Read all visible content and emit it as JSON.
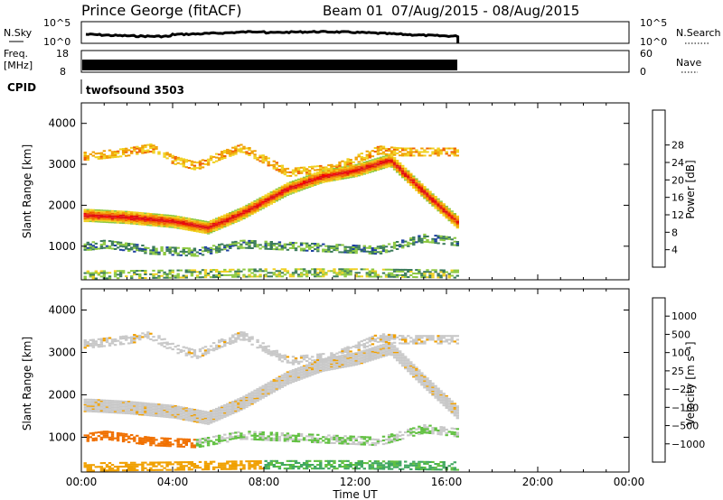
{
  "header": {
    "station": "Prince George (fitACF)",
    "beam": "Beam 01",
    "date_range": "07/Aug/2015 - 08/Aug/2015"
  },
  "top_panels": {
    "nsky": {
      "label": "N.Sky",
      "tick_top": "10^5",
      "tick_bottom": "10^0",
      "right_top": "10^5",
      "right_bottom": "10^0",
      "right_label": "N.Search"
    },
    "freq": {
      "label_top": "Freq.",
      "label_bottom": "[MHz]",
      "tick_top": "18",
      "tick_bottom": "8",
      "right_top": "60",
      "right_bottom": "0",
      "right_label": "Nave"
    },
    "cpid": {
      "label": "CPID",
      "value": "twofsound 3503"
    }
  },
  "colors": {
    "power": [
      "#0000ff",
      "#1d3fa0",
      "#3a7a5a",
      "#8cc840",
      "#f0d020",
      "#f0a000",
      "#f06000",
      "#e01010",
      "#ff0000"
    ],
    "velocity": [
      "#2040a0",
      "#2e7860",
      "#40a860",
      "#60c040",
      "#c8c8c8",
      "#f0a000",
      "#f07000",
      "#e03010",
      "#ff0000"
    ]
  },
  "chart_data": [
    {
      "type": "heatmap",
      "name": "power",
      "ylabel": "Slant Range [km]",
      "xlabel": "Time UT",
      "xlim": [
        "00:00",
        "00:00"
      ],
      "x_ticks": [
        "00:00",
        "04:00",
        "08:00",
        "12:00",
        "16:00",
        "20:00",
        "00:00"
      ],
      "y_ticks": [
        "1000",
        "2000",
        "3000",
        "4000"
      ],
      "ylim": [
        180,
        4500
      ],
      "colorbar": {
        "label": "Power [dB]",
        "ticks": [
          "4",
          "8",
          "12",
          "16",
          "20",
          "24",
          "28"
        ]
      },
      "data_end_hour": 16.5,
      "bands": [
        {
          "name": "main",
          "points": [
            [
              0.3,
              1750
            ],
            [
              2,
              1700
            ],
            [
              4,
              1600
            ],
            [
              5.5,
              1450
            ],
            [
              7,
              1800
            ],
            [
              9,
              2400
            ],
            [
              10.5,
              2700
            ],
            [
              12,
              2850
            ],
            [
              13.5,
              3100
            ],
            [
              15,
              2300
            ],
            [
              16.5,
              1550
            ]
          ],
          "power": 26
        },
        {
          "name": "upper",
          "points": [
            [
              0.3,
              3200
            ],
            [
              2,
              3300
            ],
            [
              3,
              3400
            ],
            [
              4,
              3100
            ],
            [
              5,
              2950
            ],
            [
              6,
              3200
            ],
            [
              7,
              3400
            ],
            [
              9,
              2800
            ],
            [
              11,
              2900
            ],
            [
              13,
              3350
            ],
            [
              14,
              3300
            ]
          ],
          "power": 14
        },
        {
          "name": "lower",
          "points": [
            [
              0.3,
              1000
            ],
            [
              1,
              1050
            ],
            [
              3,
              900
            ],
            [
              5,
              850
            ],
            [
              7,
              1050
            ],
            [
              9,
              1000
            ],
            [
              11,
              950
            ],
            [
              13,
              900
            ],
            [
              15,
              1200
            ],
            [
              16.5,
              1100
            ]
          ],
          "power": 6
        },
        {
          "name": "ground",
          "points": [
            [
              0.3,
              300
            ],
            [
              4,
              320
            ],
            [
              8,
              350
            ],
            [
              12,
              350
            ],
            [
              16.5,
              320
            ]
          ],
          "power": 8
        }
      ]
    },
    {
      "type": "heatmap",
      "name": "velocity",
      "ylabel": "Slant Range [km]",
      "xlabel": "Time UT",
      "x_ticks": [
        "00:00",
        "04:00",
        "08:00",
        "12:00",
        "16:00",
        "20:00",
        "00:00"
      ],
      "y_ticks": [
        "1000",
        "2000",
        "3000",
        "4000"
      ],
      "ylim": [
        180,
        4500
      ],
      "colorbar": {
        "label": "Velocity [m s⁻¹]",
        "ticks": [
          "1000",
          "500",
          "100",
          "25",
          "−25",
          "−100",
          "−500",
          "−1000"
        ]
      },
      "data_end_hour": 16.5
    }
  ]
}
